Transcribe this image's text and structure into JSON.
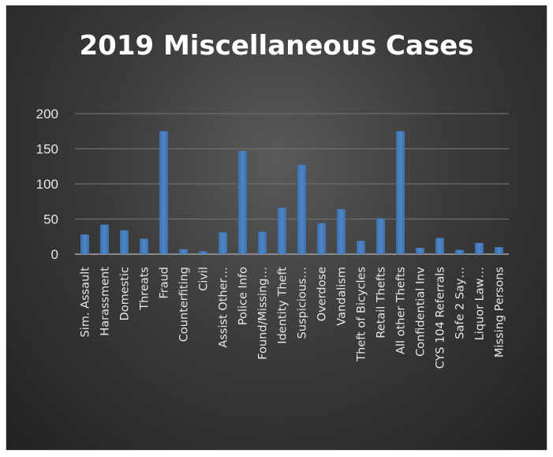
{
  "chart_data": {
    "type": "bar",
    "title": "2019 Miscellaneous Cases",
    "categories": [
      "Sim. Assault",
      "Harassment",
      "Domestic",
      "Threats",
      "Fraud",
      "Counterfiting",
      "Civil",
      "Assist Other…",
      "Police Info",
      "Found/Missing…",
      "Identity Theft",
      "Suspicious…",
      "Overdose",
      "Vandalism",
      "Theft of Bicycles",
      "Retail Thefts",
      "All other Thefts",
      "Confidential Inv",
      "CYS 104 Referrals",
      "Safe 2 Say…",
      "Liquor Law…",
      "Missing Persons"
    ],
    "values": [
      28,
      42,
      34,
      22,
      175,
      7,
      4,
      31,
      147,
      32,
      66,
      127,
      44,
      64,
      19,
      51,
      175,
      9,
      23,
      6,
      16,
      10
    ],
    "yticks": [
      "0",
      "50",
      "100",
      "150",
      "200"
    ],
    "ylim": [
      0,
      200
    ],
    "grid": true,
    "bar_color": "#4f86c6",
    "background": "#3a3a3a"
  }
}
